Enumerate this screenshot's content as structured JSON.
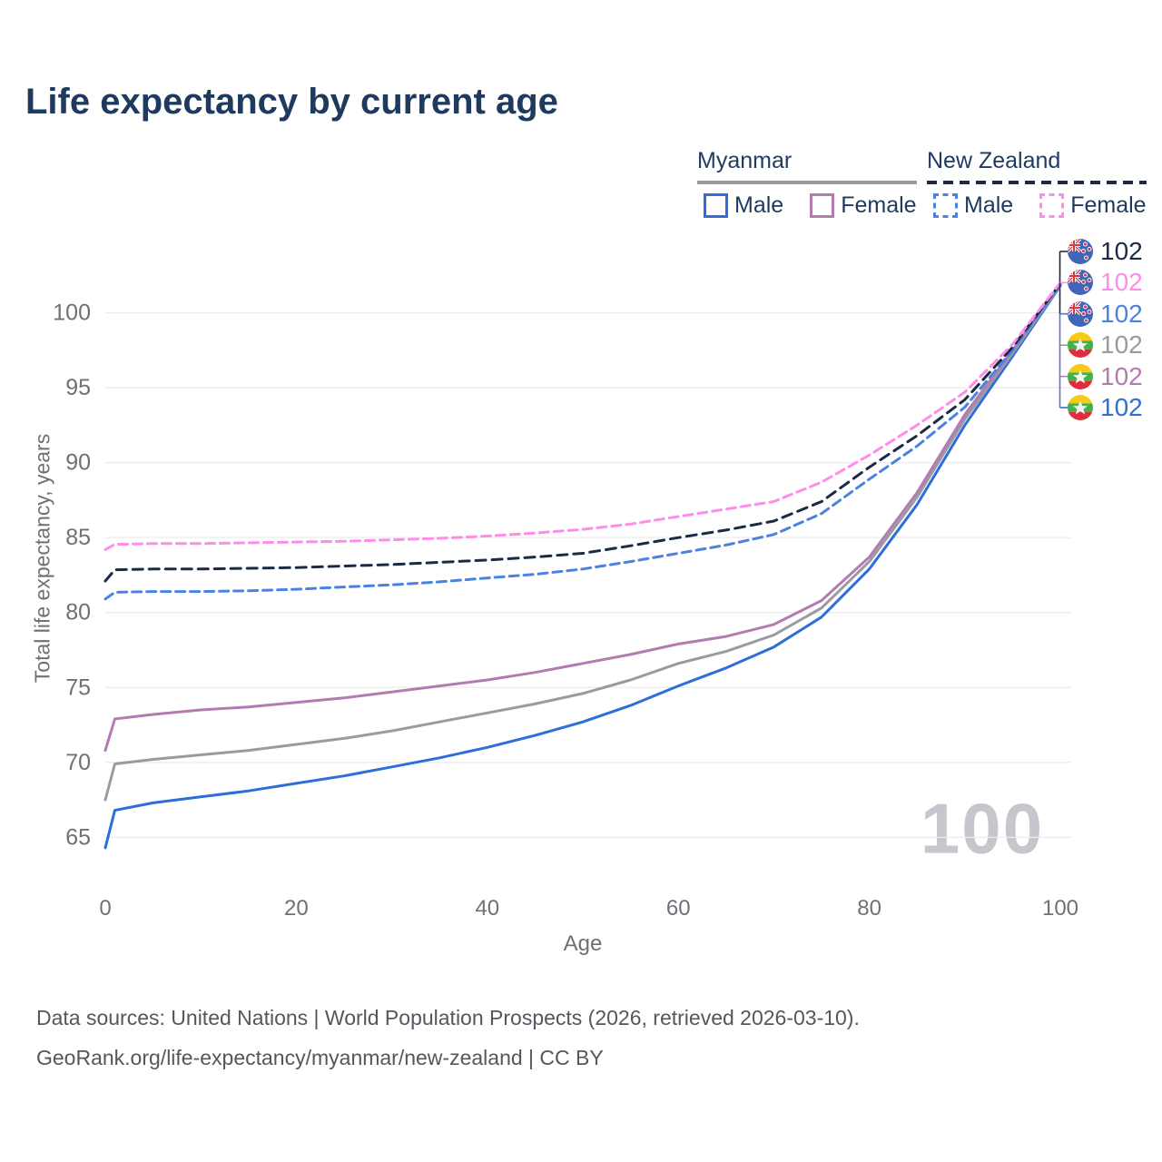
{
  "header": {
    "title": "Life expectancy by current age"
  },
  "legend": {
    "groups": [
      {
        "label": "Myanmar",
        "line_style": "solid",
        "underline_color": "#9a9ba0",
        "items": [
          {
            "label": "Male",
            "color": "#2e6edb",
            "dash": "solid"
          },
          {
            "label": "Female",
            "color": "#b27cb1",
            "dash": "solid"
          }
        ]
      },
      {
        "label": "New Zealand",
        "line_style": "dashed",
        "underline_color": "#1b2b45",
        "items": [
          {
            "label": "Male",
            "color": "#4b82e0",
            "dash": "dashed"
          },
          {
            "label": "Female",
            "color": "#ff8ce8",
            "dash": "dashed"
          }
        ]
      }
    ]
  },
  "chart_data": {
    "type": "line",
    "title": "Life expectancy by current age",
    "xlabel": "Age",
    "ylabel": "Total life expectancy, years",
    "xlim": [
      0,
      100
    ],
    "ylim": [
      63,
      103
    ],
    "xticks": [
      0,
      20,
      40,
      60,
      80,
      100
    ],
    "yticks": [
      65,
      70,
      75,
      80,
      85,
      90,
      95,
      100
    ],
    "grid": "horizontal",
    "legend_position": "top-right",
    "watermark": "100",
    "x": [
      0,
      1,
      5,
      10,
      15,
      20,
      25,
      30,
      35,
      40,
      45,
      50,
      55,
      60,
      65,
      70,
      75,
      80,
      85,
      90,
      95,
      100
    ],
    "series": [
      {
        "name": "Myanmar Male",
        "country": "Myanmar",
        "group": "male",
        "color": "#2e6edb",
        "dash": "solid",
        "values": [
          64.3,
          66.8,
          67.3,
          67.7,
          68.1,
          68.6,
          69.1,
          69.7,
          70.3,
          71.0,
          71.8,
          72.7,
          73.8,
          75.1,
          76.3,
          77.7,
          79.7,
          82.9,
          87.2,
          92.5,
          97.1,
          101.8
        ]
      },
      {
        "name": "Myanmar All",
        "country": "Myanmar",
        "group": "all",
        "color": "#9a9ba0",
        "dash": "solid",
        "values": [
          67.5,
          69.9,
          70.2,
          70.5,
          70.8,
          71.2,
          71.6,
          72.1,
          72.7,
          73.3,
          73.9,
          74.6,
          75.5,
          76.6,
          77.4,
          78.5,
          80.3,
          83.4,
          87.7,
          92.9,
          97.3,
          101.85
        ]
      },
      {
        "name": "Myanmar Female",
        "country": "Myanmar",
        "group": "female",
        "color": "#b27cb1",
        "dash": "solid",
        "values": [
          70.8,
          72.9,
          73.2,
          73.5,
          73.7,
          74.0,
          74.3,
          74.7,
          75.1,
          75.5,
          76.0,
          76.6,
          77.2,
          77.9,
          78.4,
          79.2,
          80.8,
          83.7,
          88.0,
          93.2,
          97.5,
          101.9
        ]
      },
      {
        "name": "New Zealand Male",
        "country": "New Zealand",
        "group": "male",
        "color": "#4b82e0",
        "dash": "dashed",
        "values": [
          80.9,
          81.35,
          81.4,
          81.4,
          81.45,
          81.55,
          81.7,
          81.85,
          82.05,
          82.3,
          82.55,
          82.9,
          83.4,
          83.95,
          84.5,
          85.2,
          86.6,
          88.9,
          91.1,
          93.7,
          97.5,
          101.9
        ]
      },
      {
        "name": "New Zealand All",
        "country": "New Zealand",
        "group": "all",
        "color": "#1b2b45",
        "dash": "dashed",
        "values": [
          82.1,
          82.85,
          82.9,
          82.9,
          82.95,
          83.0,
          83.1,
          83.2,
          83.35,
          83.5,
          83.7,
          83.95,
          84.45,
          85.0,
          85.5,
          86.1,
          87.4,
          89.7,
          91.8,
          94.2,
          97.7,
          101.95
        ]
      },
      {
        "name": "New Zealand Female",
        "country": "New Zealand",
        "group": "female",
        "color": "#ff8ce8",
        "dash": "dashed",
        "values": [
          84.2,
          84.55,
          84.6,
          84.6,
          84.65,
          84.7,
          84.75,
          84.85,
          84.95,
          85.1,
          85.3,
          85.55,
          85.9,
          86.4,
          86.9,
          87.4,
          88.7,
          90.5,
          92.5,
          94.7,
          97.9,
          102.0
        ]
      }
    ],
    "end_labels": [
      {
        "country": "New Zealand",
        "series": "All",
        "value": "102",
        "color": "#1b2b45"
      },
      {
        "country": "New Zealand",
        "series": "Female",
        "value": "102",
        "color": "#ff8ce8"
      },
      {
        "country": "New Zealand",
        "series": "Male",
        "value": "102",
        "color": "#4b82e0"
      },
      {
        "country": "Myanmar",
        "series": "All",
        "value": "102",
        "color": "#9a9ba0"
      },
      {
        "country": "Myanmar",
        "series": "Female",
        "value": "102",
        "color": "#b27cb1"
      },
      {
        "country": "Myanmar",
        "series": "Male",
        "value": "102",
        "color": "#2e6edb"
      }
    ]
  },
  "footer": {
    "line1": "Data sources: United Nations | World Population Prospects (2026, retrieved 2026-03-10).",
    "line2": "GeoRank.org/life-expectancy/myanmar/new-zealand | CC BY"
  }
}
